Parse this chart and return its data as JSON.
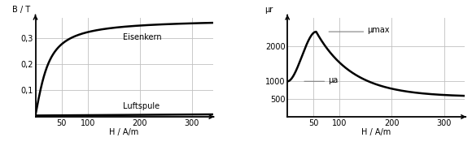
{
  "left": {
    "title_y": "B / T",
    "title_x": "H / A/m",
    "xlim": [
      0,
      340
    ],
    "ylim": [
      -0.005,
      0.38
    ],
    "xticks": [
      50,
      100,
      200,
      300
    ],
    "yticks": [
      0.1,
      0.2,
      0.3
    ],
    "ytick_labels": [
      "0,1",
      "0,2",
      "0,3"
    ],
    "label_eisenkern": "Eisenkern",
    "label_luftspule": "Luftspule",
    "line_color": "#000000",
    "grid_color": "#c0c0c0"
  },
  "right": {
    "title_y": "μr",
    "title_x": "H / A/m",
    "xlim": [
      0,
      340
    ],
    "ylim": [
      0,
      2800
    ],
    "xticks": [
      50,
      100,
      200,
      300
    ],
    "yticks": [
      500,
      1000,
      2000
    ],
    "ytick_labels": [
      "500",
      "1000",
      "2000"
    ],
    "label_mumax": "μmax",
    "label_mua": "μa",
    "line_color": "#000000",
    "grid_color": "#c0c0c0"
  },
  "background_color": "#ffffff",
  "figure_background": "#ffffff"
}
